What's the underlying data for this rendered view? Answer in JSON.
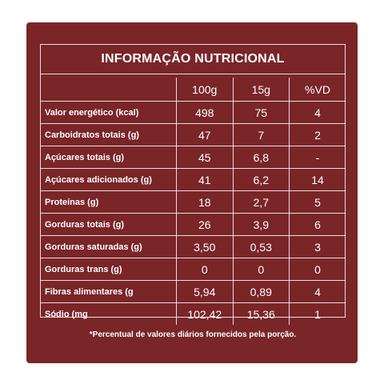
{
  "title": "INFORMAÇÃO NUTRICIONAL",
  "columns": [
    "",
    "100g",
    "15g",
    "%VD"
  ],
  "rows": [
    {
      "label": "Valor energético (kcal)",
      "per100g": "498",
      "per15g": "75",
      "vd": "4"
    },
    {
      "label": "Carboidratos totais (g)",
      "per100g": "47",
      "per15g": "7",
      "vd": "2"
    },
    {
      "label": "Açúcares totais (g)",
      "per100g": "45",
      "per15g": "6,8",
      "vd": "-"
    },
    {
      "label": "Açúcares adicionados (g)",
      "per100g": "41",
      "per15g": "6,2",
      "vd": "14"
    },
    {
      "label": "Proteínas (g)",
      "per100g": "18",
      "per15g": "2,7",
      "vd": "5"
    },
    {
      "label": "Gorduras totais (g)",
      "per100g": "26",
      "per15g": "3,9",
      "vd": "6"
    },
    {
      "label": "Gorduras saturadas (g)",
      "per100g": "3,50",
      "per15g": "0,53",
      "vd": "3"
    },
    {
      "label": "Gorduras trans (g)",
      "per100g": "0",
      "per15g": "0",
      "vd": "0"
    },
    {
      "label": "Fibras alimentares (g",
      "per100g": "5,94",
      "per15g": "0,89",
      "vd": "4"
    },
    {
      "label": "Sódio (mg",
      "per100g": "102,42",
      "per15g": "15,36",
      "vd": "1"
    }
  ],
  "footnote": "*Percentual de valores diários fornecidos pela porção.",
  "colors": {
    "panel": "#7a2528",
    "text": "#ffffff"
  }
}
